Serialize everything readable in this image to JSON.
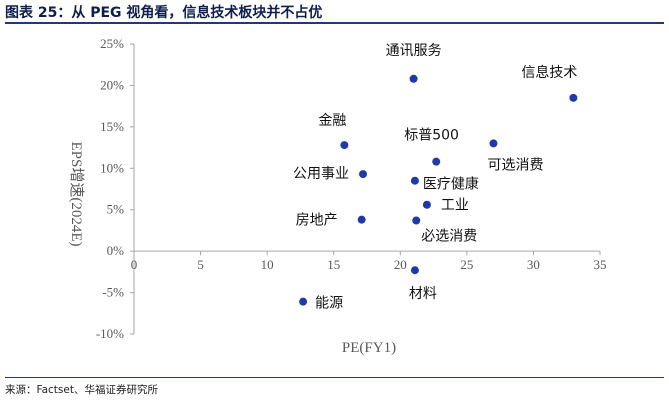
{
  "header": {
    "figure_title": "图表 25：从 PEG 视角看，信息技术板块并不占优"
  },
  "footer": {
    "source": "来源：Factset、华福证券研究所"
  },
  "colors": {
    "point": "#1f3aa8",
    "axis": "#a6a6a6",
    "rule": "#1f3a78"
  },
  "chart_data": {
    "type": "scatter",
    "xlabel": "PE(FY1)",
    "ylabel": "EPS增速(2024E)",
    "xlim": [
      0,
      35
    ],
    "ylim": [
      -10,
      25
    ],
    "x_ticks": [
      0,
      5,
      10,
      15,
      20,
      25,
      30,
      35
    ],
    "y_ticks": [
      25,
      20,
      15,
      10,
      5,
      0,
      -5,
      -10
    ],
    "y_tick_labels": [
      "25%",
      "20%",
      "15%",
      "10%",
      "5%",
      "0%",
      "-5%",
      "-10%"
    ],
    "grid": false,
    "points": [
      {
        "label": "通讯服务",
        "x": 21.0,
        "y": 20.8
      },
      {
        "label": "信息技术",
        "x": 33.0,
        "y": 18.5
      },
      {
        "label": "金融",
        "x": 15.8,
        "y": 12.8
      },
      {
        "label": "标普500",
        "x": 22.7,
        "y": 10.8
      },
      {
        "label": "可选消费",
        "x": 27.0,
        "y": 13.0
      },
      {
        "label": "公用事业",
        "x": 17.2,
        "y": 9.3
      },
      {
        "label": "医疗健康",
        "x": 21.1,
        "y": 8.5
      },
      {
        "label": "工业",
        "x": 22.0,
        "y": 5.6
      },
      {
        "label": "房地产",
        "x": 17.1,
        "y": 3.8
      },
      {
        "label": "必选消费",
        "x": 21.2,
        "y": 3.7
      },
      {
        "label": "材料",
        "x": 21.1,
        "y": -2.3
      },
      {
        "label": "能源",
        "x": 12.7,
        "y": -6.1
      }
    ]
  }
}
